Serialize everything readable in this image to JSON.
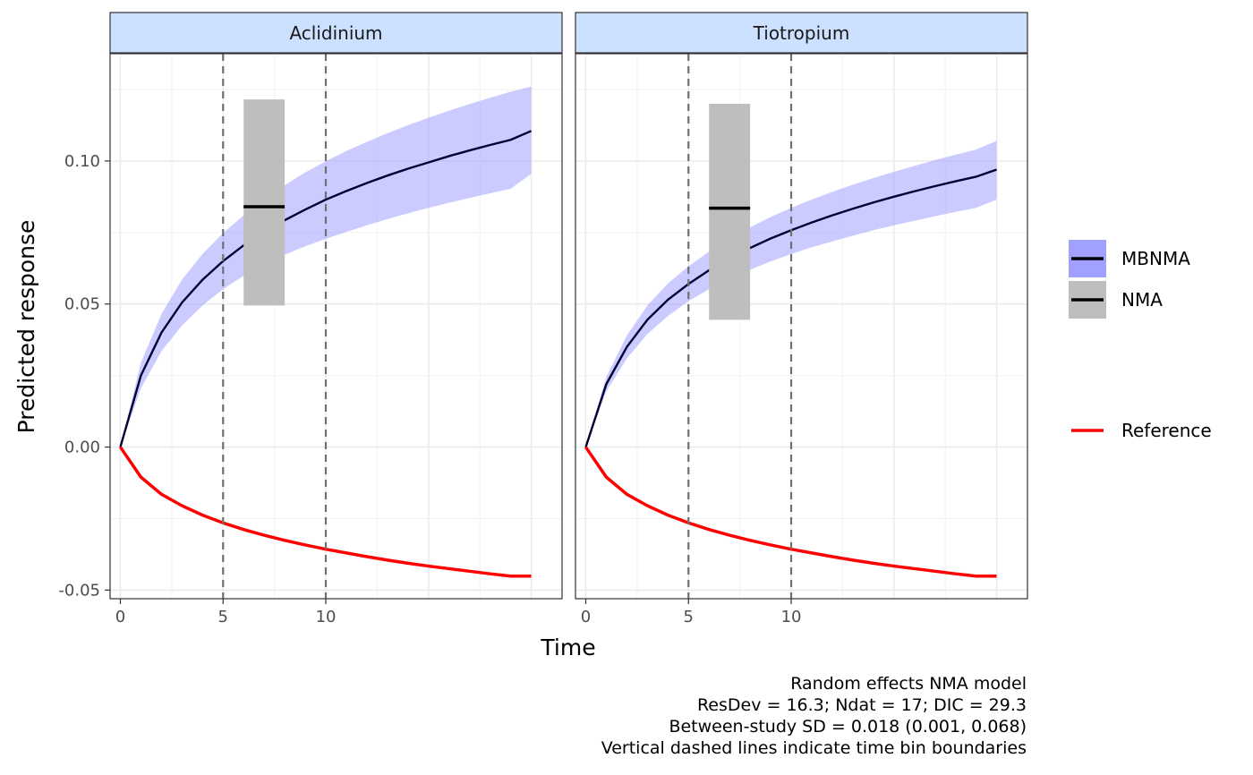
{
  "chart_data": {
    "type": "line",
    "xlabel": "Time",
    "ylabel": "Predicted response",
    "xlim": [
      -0.5,
      21.5
    ],
    "ylim": [
      -0.053,
      0.1375
    ],
    "x_ticks": [
      0,
      5,
      10
    ],
    "x_tick_labels": [
      "0",
      "5",
      "10"
    ],
    "y_ticks": [
      -0.05,
      0,
      0.05,
      0.1
    ],
    "y_tick_labels": [
      "-0.05",
      "0.00",
      "0.05",
      "0.10"
    ],
    "grid": true,
    "legend_position": "right",
    "legend": [
      {
        "label": "MBNMA",
        "fill": "#a0a0ff",
        "line": "#000000"
      },
      {
        "label": "NMA",
        "fill": "#bebebe",
        "line": "#000000"
      },
      {
        "label": "Reference",
        "line": "#ff0000"
      }
    ],
    "time_bin_boundaries": [
      5,
      10
    ],
    "panels": [
      {
        "title": "Aclidinium",
        "x": [
          0,
          1,
          2,
          3,
          4,
          5,
          6,
          7,
          8,
          9,
          10,
          11,
          12,
          13,
          14,
          15,
          16,
          17,
          18,
          19,
          20
        ],
        "mbnma": [
          0,
          0.025,
          0.04,
          0.0505,
          0.0585,
          0.065,
          0.0705,
          0.0752,
          0.0793,
          0.083,
          0.0865,
          0.0895,
          0.0923,
          0.0949,
          0.0973,
          0.0995,
          0.1017,
          0.1037,
          0.1056,
          0.1074,
          0.1105
        ],
        "mbnma_lower": [
          0,
          0.0205,
          0.0335,
          0.0425,
          0.0495,
          0.0552,
          0.0598,
          0.0638,
          0.0672,
          0.0702,
          0.0728,
          0.0752,
          0.0775,
          0.0797,
          0.0817,
          0.0836,
          0.0854,
          0.0871,
          0.0887,
          0.0903,
          0.0955
        ],
        "mbnma_upper": [
          0,
          0.0295,
          0.0465,
          0.0585,
          0.0675,
          0.0748,
          0.081,
          0.0866,
          0.0915,
          0.096,
          0.0999,
          0.1035,
          0.1067,
          0.1097,
          0.1125,
          0.1151,
          0.1176,
          0.1199,
          0.1221,
          0.1242,
          0.126
        ],
        "reference": [
          0,
          -0.0105,
          -0.0165,
          -0.0205,
          -0.0238,
          -0.0265,
          -0.0288,
          -0.0308,
          -0.0326,
          -0.0342,
          -0.0357,
          -0.037,
          -0.0383,
          -0.0395,
          -0.0406,
          -0.0416,
          -0.0425,
          -0.0434,
          -0.0443,
          -0.0451,
          -0.0451
        ],
        "nma": {
          "x_min": 6,
          "x_max": 8,
          "estimate": 0.084,
          "lower": 0.0495,
          "upper": 0.1215
        }
      },
      {
        "title": "Tiotropium",
        "x": [
          0,
          1,
          2,
          3,
          4,
          5,
          6,
          7,
          8,
          9,
          10,
          11,
          12,
          13,
          14,
          15,
          16,
          17,
          18,
          19,
          20
        ],
        "mbnma": [
          0,
          0.022,
          0.035,
          0.0445,
          0.0515,
          0.057,
          0.0618,
          0.0659,
          0.0696,
          0.0729,
          0.0758,
          0.0785,
          0.081,
          0.0833,
          0.0855,
          0.0875,
          0.0894,
          0.0912,
          0.0929,
          0.0945,
          0.097
        ],
        "mbnma_lower": [
          0,
          0.0195,
          0.031,
          0.0395,
          0.0458,
          0.051,
          0.0552,
          0.0588,
          0.062,
          0.0649,
          0.0675,
          0.0698,
          0.0719,
          0.0739,
          0.0758,
          0.0775,
          0.0791,
          0.0807,
          0.0822,
          0.0836,
          0.0865
        ],
        "mbnma_upper": [
          0,
          0.0245,
          0.039,
          0.0495,
          0.0572,
          0.0632,
          0.0683,
          0.0728,
          0.0768,
          0.0804,
          0.0836,
          0.0865,
          0.0892,
          0.0917,
          0.094,
          0.0962,
          0.0983,
          0.1003,
          0.1022,
          0.104,
          0.107
        ],
        "reference": [
          0,
          -0.0105,
          -0.0165,
          -0.0205,
          -0.0238,
          -0.0265,
          -0.0288,
          -0.0308,
          -0.0326,
          -0.0342,
          -0.0357,
          -0.037,
          -0.0383,
          -0.0395,
          -0.0406,
          -0.0416,
          -0.0425,
          -0.0434,
          -0.0443,
          -0.0451,
          -0.0451
        ],
        "nma": {
          "x_min": 6,
          "x_max": 8,
          "estimate": 0.0835,
          "lower": 0.0445,
          "upper": 0.12
        }
      }
    ],
    "caption": [
      "Random effects NMA model",
      "ResDev = 16.3; Ndat = 17; DIC = 29.3",
      "Between-study SD = 0.018 (0.001, 0.068)",
      "Vertical dashed lines indicate time bin boundaries"
    ]
  }
}
